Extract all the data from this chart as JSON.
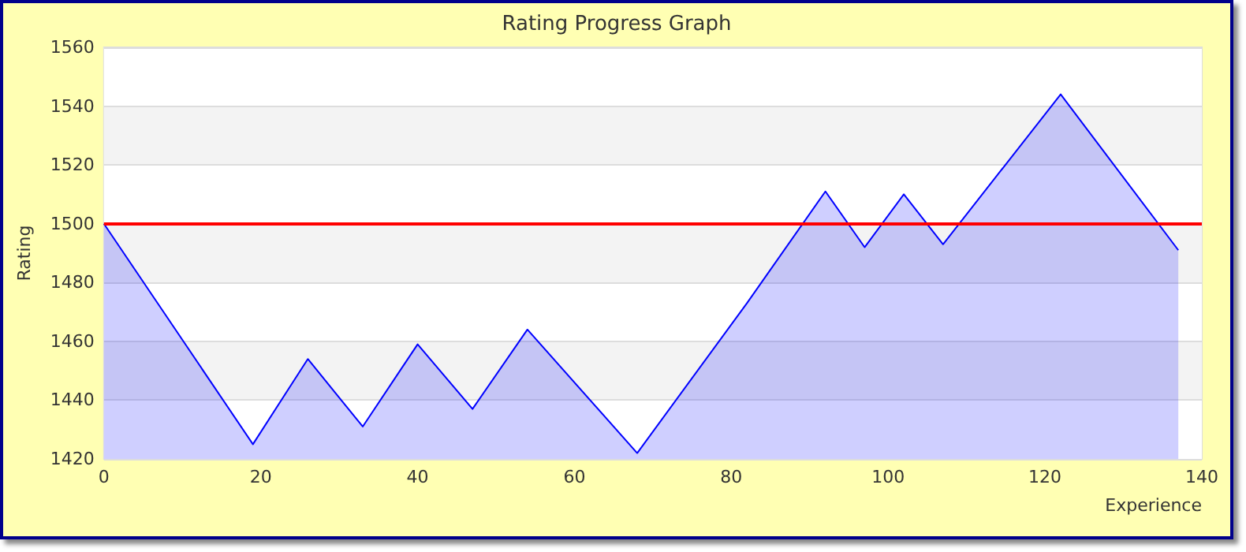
{
  "chart_data": {
    "type": "area",
    "title": "Rating Progress Graph",
    "xlabel": "Experience",
    "ylabel": "Rating",
    "x": [
      0,
      19,
      26,
      33,
      40,
      47,
      54,
      68,
      82,
      92,
      97,
      102,
      107,
      122,
      137
    ],
    "series": [
      {
        "color": "#0000ff",
        "values": [
          1500,
          1425,
          1454,
          1431,
          1459,
          1437,
          1464,
          1422,
          1473,
          1511,
          1492,
          1510,
          1493,
          1544,
          1491
        ]
      }
    ],
    "xlim": [
      0,
      140
    ],
    "xticks": [
      0,
      20,
      40,
      60,
      80,
      100,
      120,
      140
    ],
    "ylim": [
      1420,
      1560
    ],
    "yticks": [
      1420,
      1440,
      1460,
      1480,
      1500,
      1520,
      1540,
      1560
    ],
    "grid": "y",
    "marker": "none",
    "line_style": "solid",
    "ref_lines": [
      {
        "axis": "y",
        "value": 1500,
        "color": "#ff0000"
      }
    ]
  }
}
